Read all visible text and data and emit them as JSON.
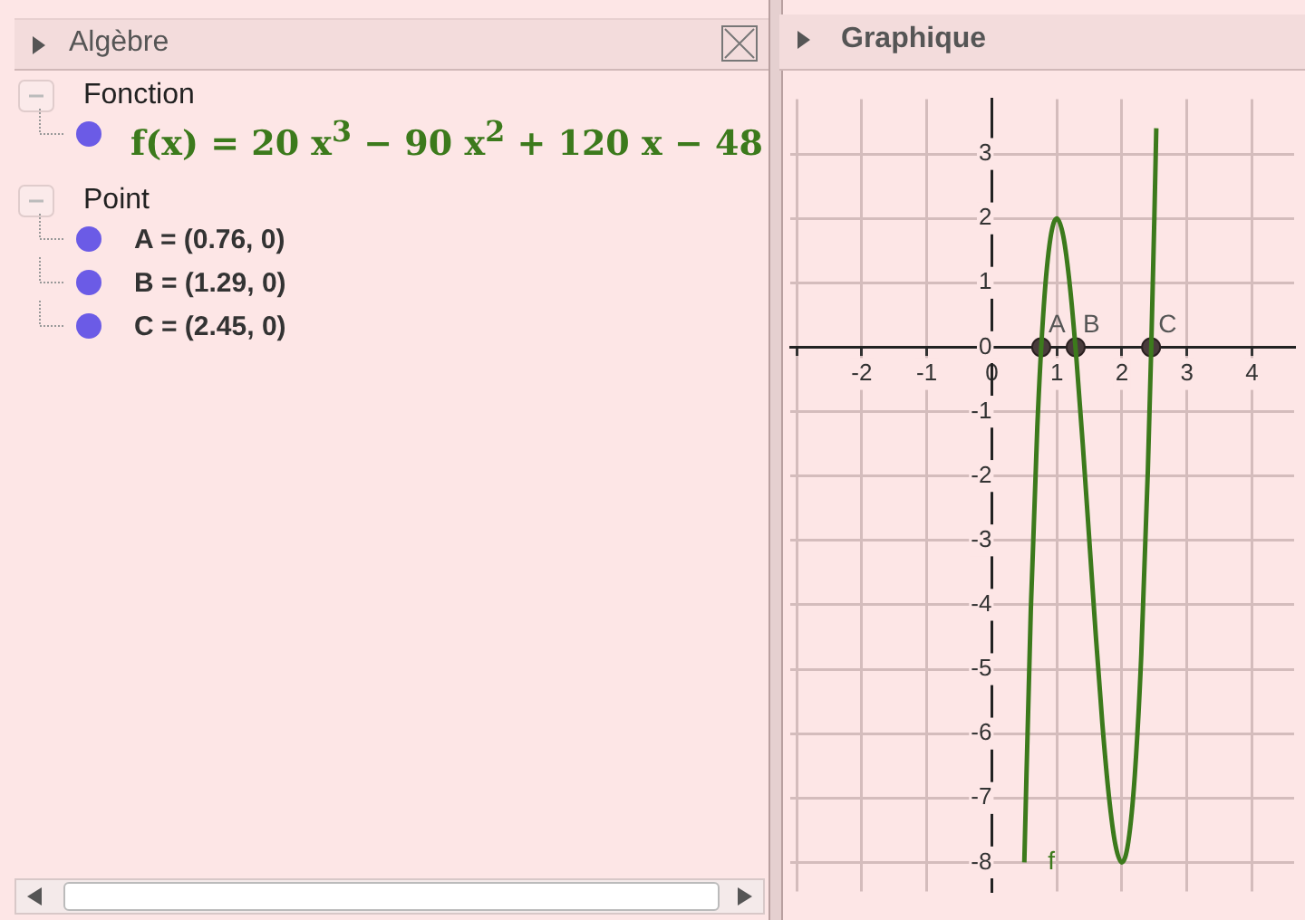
{
  "chart_data": {
    "type": "line",
    "title": "Graphique",
    "annotations": [
      "Algèbre",
      "Fonction",
      "f(x) = 20 x$^{3}$ − 90 x$^{2}$ + 120 x − 48",
      "Point",
      "A = (0.76, 0)",
      "B = (1.29, 0)",
      "C = (2.45, 0)",
      {
        "text": "A",
        "x": 0.76,
        "y": 0
      },
      {
        "text": "B",
        "x": 1.29,
        "y": 0
      },
      {
        "text": "C",
        "x": 2.45,
        "y": 0
      }
    ],
    "series": [
      {
        "name": "f",
        "type": "line",
        "color": "#3c7a1c",
        "x": [
          0.5,
          0.6,
          0.7,
          0.8,
          0.9,
          1.0,
          1.1,
          1.2,
          1.3,
          1.4,
          1.5,
          1.6,
          1.7,
          1.8,
          1.9,
          2.0,
          2.1,
          2.2,
          2.3,
          2.4,
          2.45,
          2.5,
          2.53
        ],
        "values": [
          -8,
          -4.08,
          -1.24,
          0.64,
          1.68,
          2,
          1.72,
          0.96,
          -0.16,
          -1.52,
          -3,
          -4.48,
          -5.84,
          -6.96,
          -7.72,
          -8,
          -7.68,
          -6.64,
          -4.76,
          -1.92,
          -0.1,
          2,
          3.4
        ]
      },
      {
        "type": "scatter",
        "color": "#4a3c3c",
        "marker": "circle",
        "x": [
          0.76,
          1.29,
          2.45
        ],
        "values": [
          0,
          0,
          0
        ]
      }
    ],
    "xlim": [
      -3.1,
      4.65
    ],
    "ylim": [
      -8.45,
      3.85
    ],
    "xticks": [
      {
        "value": -3,
        "label": null
      },
      -2,
      -1,
      0,
      1,
      2,
      3,
      4
    ],
    "yticks": [
      -8,
      -7,
      -6,
      -5,
      -4,
      -3,
      -2,
      -1,
      0,
      1,
      2,
      3
    ],
    "grid": true
  }
}
